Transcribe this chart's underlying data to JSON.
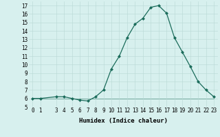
{
  "xlabel": "Humidex (Indice chaleur)",
  "x": [
    0,
    1,
    3,
    4,
    5,
    6,
    7,
    8,
    9,
    10,
    11,
    12,
    13,
    14,
    15,
    16,
    17,
    18,
    19,
    20,
    21,
    22,
    23
  ],
  "y": [
    6,
    6,
    6.2,
    6.2,
    6.0,
    5.8,
    5.7,
    6.2,
    7.0,
    9.5,
    11.0,
    13.2,
    14.8,
    15.5,
    16.8,
    17.0,
    16.1,
    13.2,
    11.5,
    9.8,
    8.0,
    7.0,
    6.2
  ],
  "y_flat": [
    6,
    6,
    6,
    6,
    6,
    6,
    6,
    6,
    6,
    6,
    6,
    6,
    6,
    6,
    6,
    6,
    6,
    6,
    6,
    6,
    6,
    6,
    6
  ],
  "line_color": "#1a6b5a",
  "bg_color": "#d7f0ee",
  "grid_color": "#b8d8d4",
  "ylim": [
    5,
    17.5
  ],
  "xlim": [
    -0.5,
    23.5
  ],
  "yticks": [
    5,
    6,
    7,
    8,
    9,
    10,
    11,
    12,
    13,
    14,
    15,
    16,
    17
  ],
  "xticks": [
    0,
    1,
    3,
    4,
    5,
    6,
    7,
    8,
    9,
    10,
    11,
    12,
    13,
    14,
    15,
    16,
    17,
    18,
    19,
    20,
    21,
    22,
    23
  ],
  "xtick_labels": [
    "0",
    "1",
    "3",
    "4",
    "5",
    "6",
    "7",
    "8",
    "9",
    "10",
    "11",
    "12",
    "13",
    "14",
    "15",
    "16",
    "17",
    "18",
    "19",
    "20",
    "21",
    "22",
    "23"
  ],
  "marker": "D",
  "marker_size": 2.0,
  "line_width": 0.9,
  "tick_fontsize": 5.5,
  "xlabel_fontsize": 6.5
}
